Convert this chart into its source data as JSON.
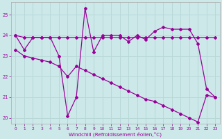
{
  "xlabel": "Windchill (Refroidissement éolien,°C)",
  "background_color": "#cce8e8",
  "grid_color": "#aacccc",
  "line_color": "#990099",
  "xlim": [
    -0.5,
    23.5
  ],
  "ylim": [
    19.7,
    25.6
  ],
  "xticks": [
    0,
    1,
    2,
    3,
    4,
    5,
    6,
    7,
    8,
    9,
    10,
    11,
    12,
    13,
    14,
    15,
    16,
    17,
    18,
    19,
    20,
    21,
    22,
    23
  ],
  "yticks": [
    20,
    21,
    22,
    23,
    24,
    25
  ],
  "series1_x": [
    0,
    1,
    2,
    3,
    4,
    5,
    6,
    7,
    8,
    9,
    10,
    11,
    12,
    13,
    14,
    15,
    16,
    17,
    18,
    19,
    20,
    21,
    22,
    23
  ],
  "series1_y": [
    24.0,
    23.3,
    23.9,
    23.9,
    23.9,
    23.0,
    20.1,
    21.0,
    25.3,
    23.2,
    24.0,
    24.0,
    24.0,
    23.7,
    24.0,
    23.8,
    24.2,
    24.4,
    24.3,
    24.3,
    24.3,
    23.6,
    21.4,
    21.0
  ],
  "series2_x": [
    0,
    1,
    2,
    3,
    4,
    5,
    6,
    7,
    8,
    9,
    10,
    11,
    12,
    13,
    14,
    15,
    16,
    17,
    18,
    19,
    20,
    21,
    22,
    23
  ],
  "series2_y": [
    24.0,
    23.9,
    23.9,
    23.9,
    23.9,
    23.9,
    23.9,
    23.9,
    23.9,
    23.9,
    23.9,
    23.9,
    23.9,
    23.9,
    23.9,
    23.9,
    23.9,
    23.9,
    23.9,
    23.9,
    23.9,
    23.9,
    23.9,
    23.9
  ],
  "series3_x": [
    0,
    1,
    2,
    3,
    4,
    5,
    6,
    7,
    8,
    9,
    10,
    11,
    12,
    13,
    14,
    15,
    16,
    17,
    18,
    19,
    20,
    21,
    22,
    23
  ],
  "series3_y": [
    23.3,
    23.0,
    22.9,
    22.8,
    22.7,
    22.5,
    22.0,
    22.5,
    22.3,
    22.1,
    21.9,
    21.7,
    21.5,
    21.3,
    21.1,
    20.9,
    20.8,
    20.6,
    20.4,
    20.2,
    20.0,
    19.8,
    21.1,
    21.0
  ],
  "figsize": [
    3.2,
    2.0
  ],
  "dpi": 100
}
